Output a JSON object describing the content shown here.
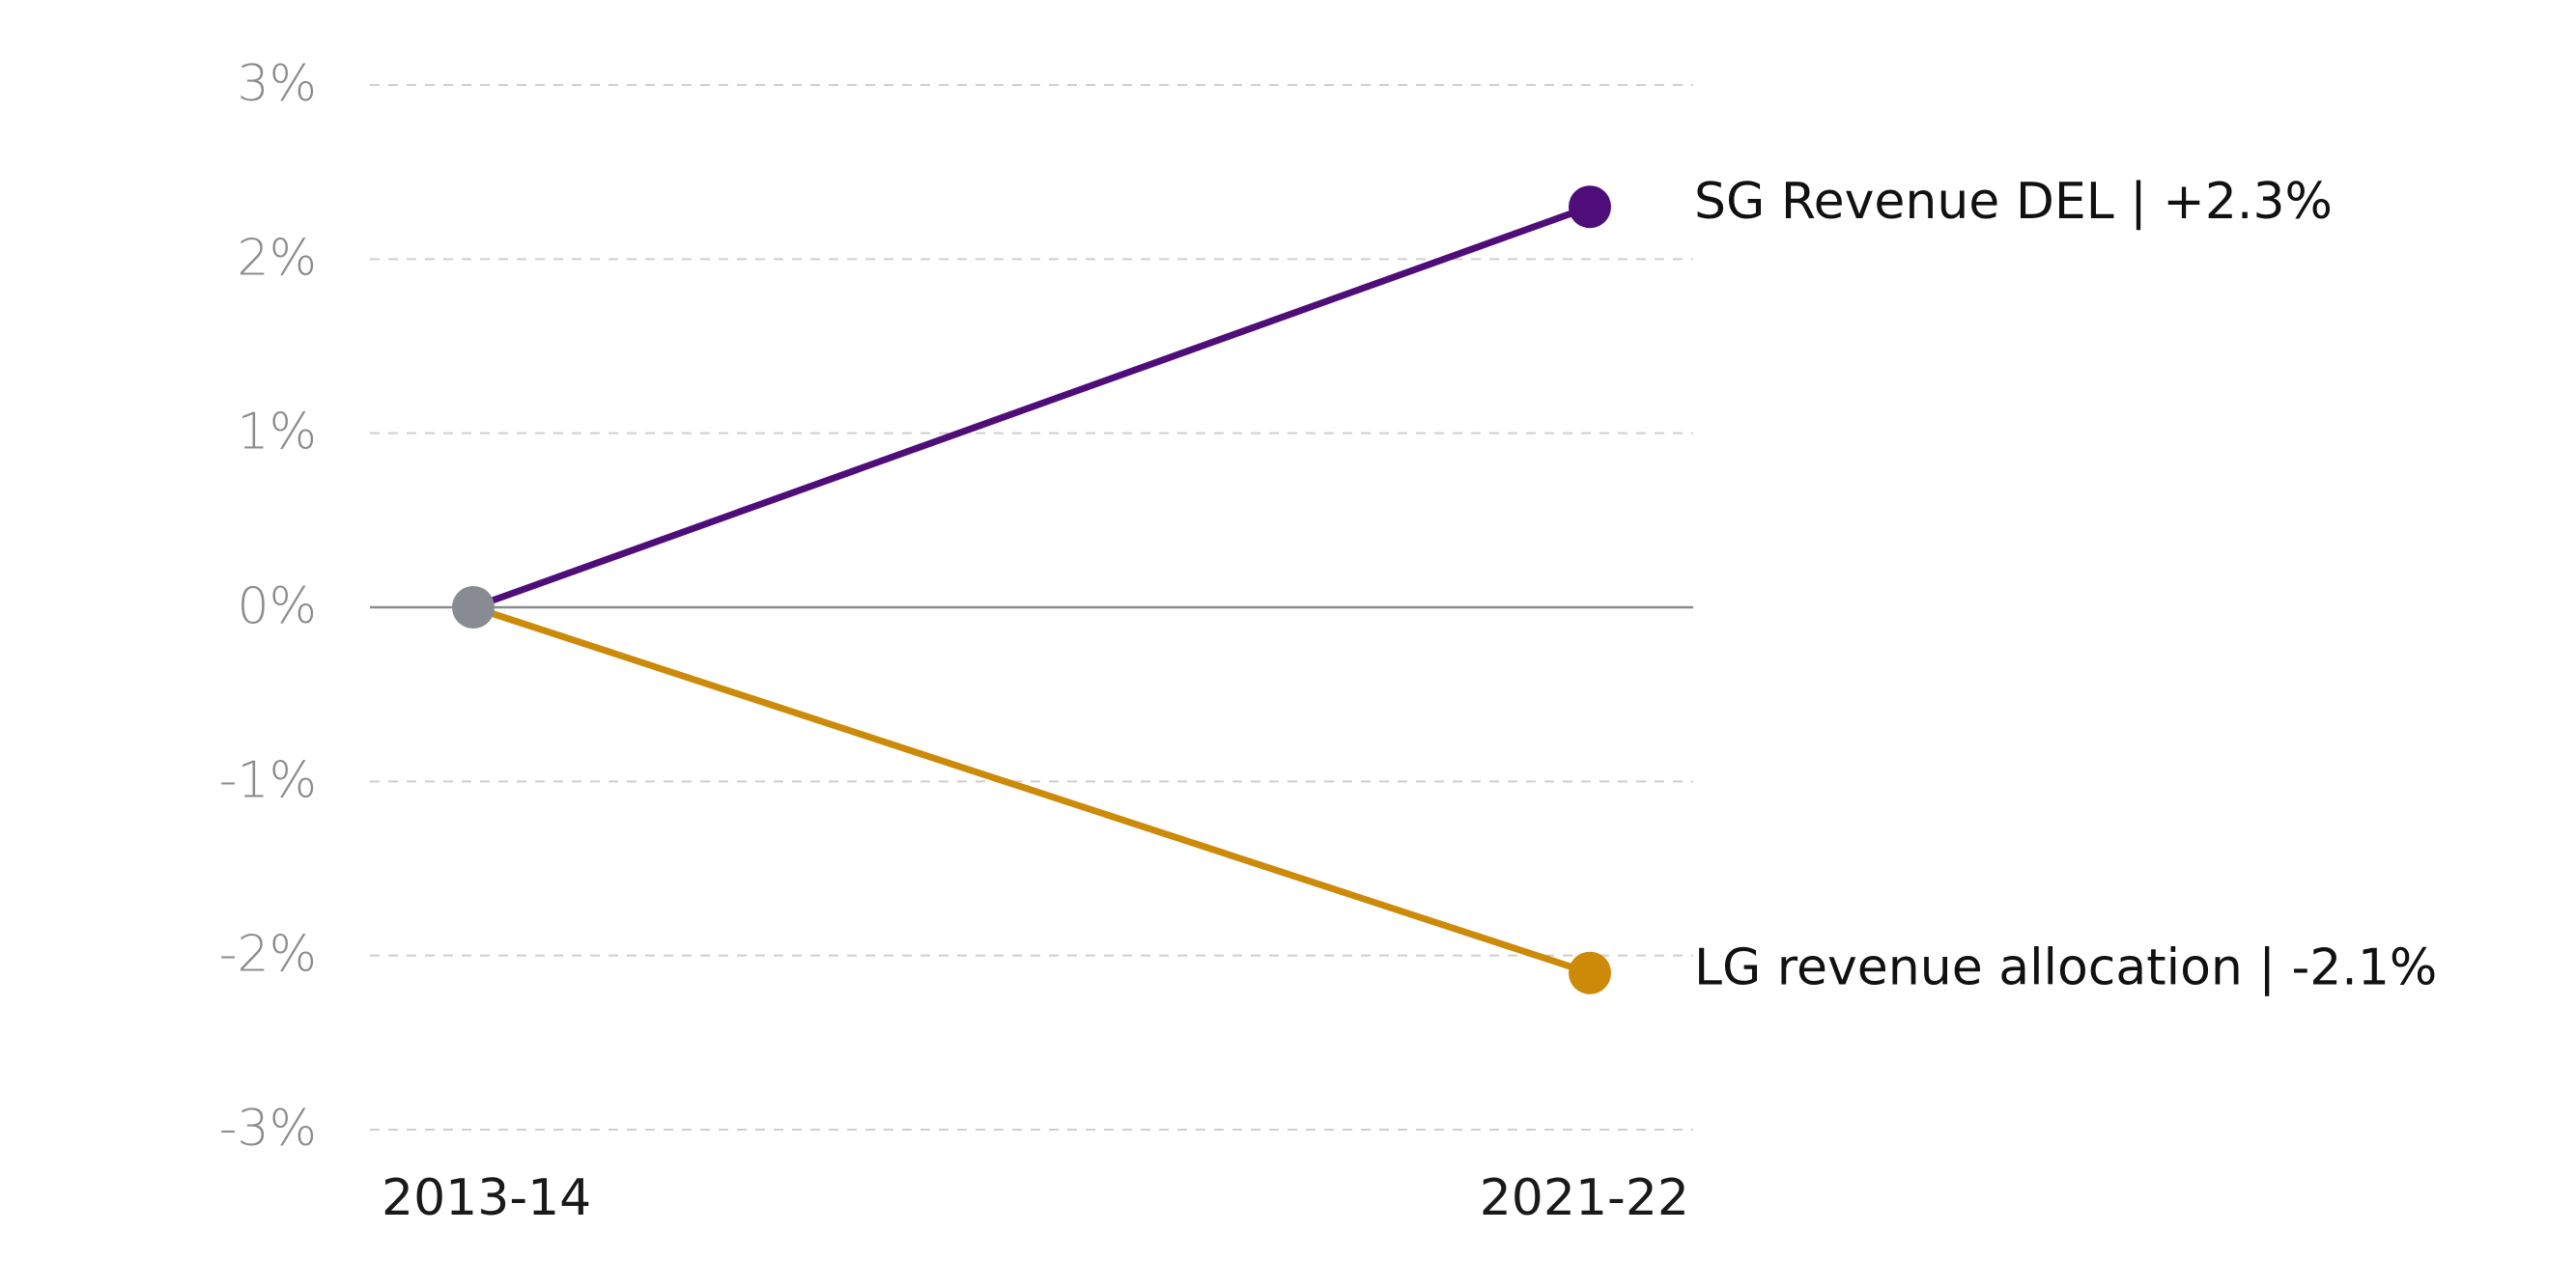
{
  "chart_data": {
    "type": "line",
    "title": "",
    "xlabel": "",
    "ylabel": "",
    "categories": [
      "2013-14",
      "2021-22"
    ],
    "ylim": [
      -3,
      3
    ],
    "y_ticks": [
      3,
      2,
      1,
      0,
      -1,
      -2,
      -3
    ],
    "y_tick_labels": [
      "3%",
      "2%",
      "1%",
      "0%",
      "-1%",
      "-2%",
      "-3%"
    ],
    "grid": true,
    "start_point_color": "#888c92",
    "series": [
      {
        "name": "SG Revenue DEL",
        "values": [
          0,
          2.3
        ],
        "label": "SG Revenue DEL | +2.3%",
        "color": "#4f0d7a"
      },
      {
        "name": "LG revenue allocation",
        "values": [
          0,
          -2.1
        ],
        "label": "LG revenue allocation | -2.1%",
        "color": "#cc8a08"
      }
    ]
  }
}
